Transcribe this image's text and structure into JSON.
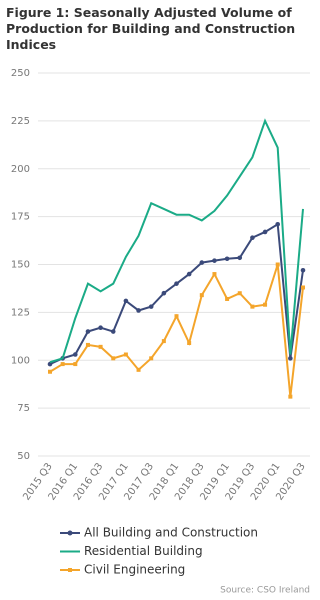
{
  "chart_data": {
    "type": "line",
    "title": "Figure 1: Seasonally Adjusted Volume of Production for Building and Construction Indices",
    "categories": [
      "2015 Q3",
      null,
      "2016 Q1",
      null,
      "2016 Q3",
      null,
      "2017 Q1",
      null,
      "2017 Q3",
      null,
      "2018 Q1",
      null,
      "2018 Q3",
      null,
      "2019 Q1",
      null,
      "2019 Q3",
      null,
      "2020 Q1",
      null,
      "2020 Q3"
    ],
    "series": [
      {
        "name": "All Building and Construction",
        "color": "#3b4a7a",
        "marker": "circle",
        "values": [
          98,
          101,
          103,
          115,
          117,
          115,
          131,
          126,
          128,
          135,
          140,
          145,
          151,
          152,
          153,
          153.5,
          164,
          167,
          171,
          101,
          147
        ]
      },
      {
        "name": "Residential Building",
        "color": "#1bab87",
        "marker": "none",
        "values": [
          99,
          101,
          122,
          140,
          136,
          140,
          154,
          165,
          182,
          179,
          176,
          176,
          173,
          178,
          186,
          196,
          206,
          225,
          211,
          103,
          179
        ]
      },
      {
        "name": "Civil Engineering",
        "color": "#f4a52b",
        "marker": "square",
        "values": [
          94,
          98,
          98,
          108,
          107,
          101,
          103,
          95,
          101,
          110,
          123,
          109,
          134,
          145,
          132,
          135,
          128,
          129,
          150,
          81,
          138
        ]
      }
    ],
    "ylim": [
      50,
      250
    ],
    "yticks": [
      50,
      75,
      100,
      125,
      150,
      175,
      200,
      225,
      250
    ],
    "grid": true,
    "source": "Source: CSO Ireland"
  }
}
